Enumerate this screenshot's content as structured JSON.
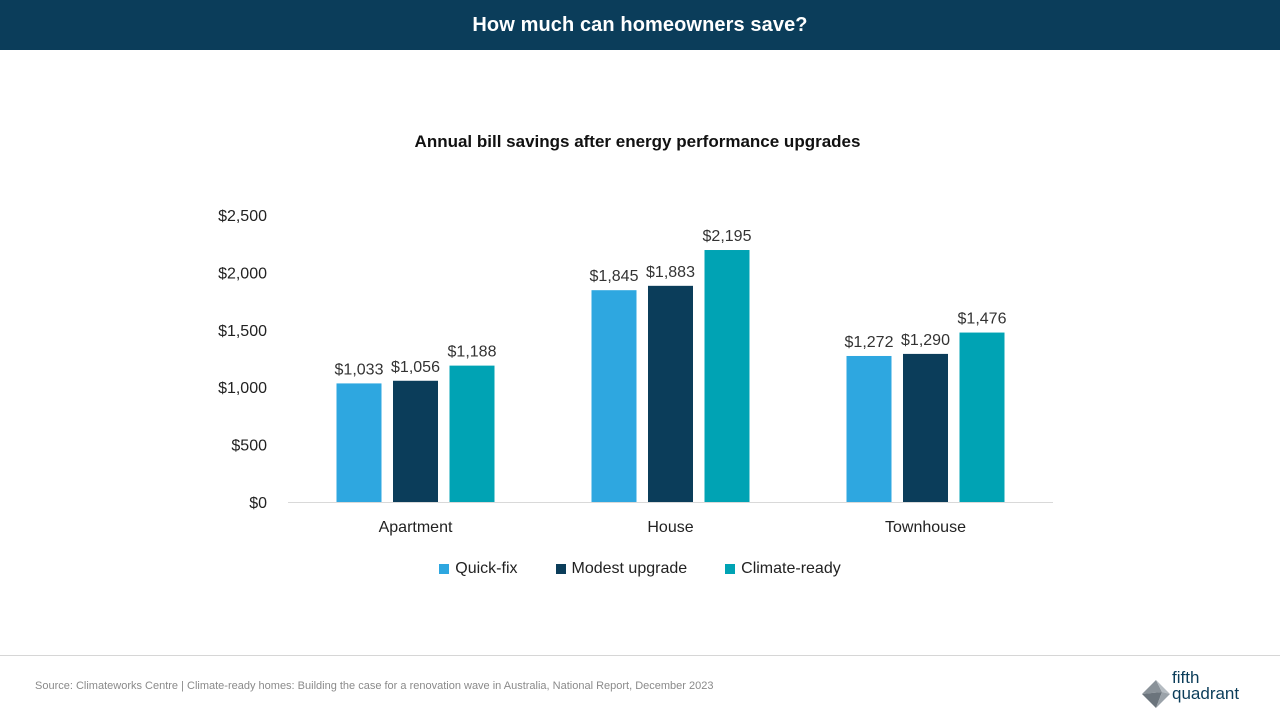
{
  "header": {
    "title": "How much can homeowners save?"
  },
  "chart_data": {
    "type": "bar",
    "title": "Annual bill savings after energy performance upgrades",
    "categories": [
      "Apartment",
      "House",
      "Townhouse"
    ],
    "series": [
      {
        "name": "Quick-fix",
        "color": "#2ea7e0",
        "values": [
          1033,
          1845,
          1272
        ],
        "labels": [
          "$1,033",
          "$1,845",
          "$1,272"
        ]
      },
      {
        "name": "Modest upgrade",
        "color": "#0b3d5a",
        "values": [
          1056,
          1883,
          1290
        ],
        "labels": [
          "$1,056",
          "$1,883",
          "$1,290"
        ]
      },
      {
        "name": "Climate-ready",
        "color": "#00a3b4",
        "values": [
          1188,
          2195,
          1476
        ],
        "labels": [
          "$1,188",
          "$2,195",
          "$1,476"
        ]
      }
    ],
    "ylim": [
      0,
      2500
    ],
    "yticks": [
      0,
      500,
      1000,
      1500,
      2000,
      2500
    ],
    "ytick_labels": [
      "$0",
      "$500",
      "$1,000",
      "$1,500",
      "$2,000",
      "$2,500"
    ],
    "xlabel": "",
    "ylabel": "",
    "grid": false,
    "legend_position": "bottom"
  },
  "footer": {
    "source": "Source: Climateworks Centre | Climate-ready homes: Building the case for a renovation wave in Australia, National Report, December 2023"
  },
  "logo": {
    "line1": "fifth",
    "line2": "quadrant",
    "accent": "#0b3d5a"
  }
}
